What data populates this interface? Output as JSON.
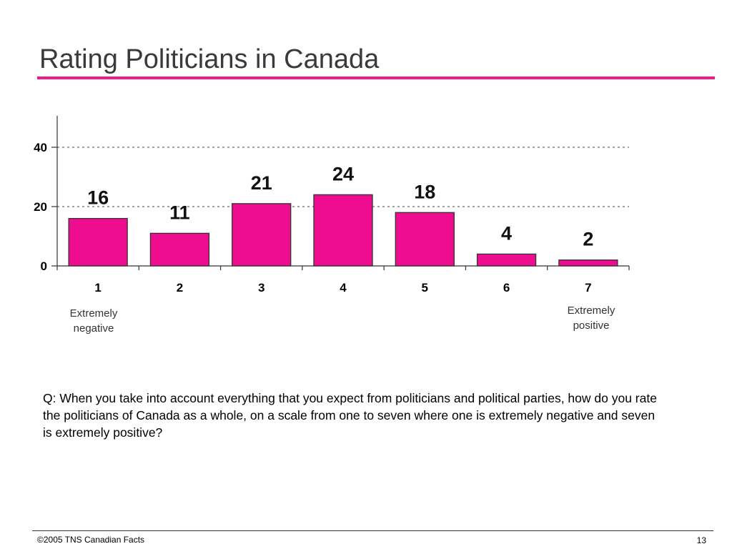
{
  "title": "Rating Politicians in Canada",
  "colors": {
    "accent": "#ee1a8c",
    "bar_fill": "#ee0d8e",
    "bar_stroke": "#333333"
  },
  "chart_data": {
    "type": "bar",
    "categories": [
      "1",
      "2",
      "3",
      "4",
      "5",
      "6",
      "7"
    ],
    "values": [
      16,
      11,
      21,
      24,
      18,
      4,
      2
    ],
    "data_labels": [
      "16",
      "11",
      "21",
      "24",
      "18",
      "4",
      "2"
    ],
    "ylim": [
      0,
      50
    ],
    "yticks": [
      0,
      20,
      40
    ],
    "gridlines": [
      20,
      40
    ],
    "grid": "dotted horizontal",
    "xlabel": "",
    "ylabel": "",
    "legend": "none"
  },
  "scale_labels": {
    "low": "Extremely negative",
    "high": "Extremely positive"
  },
  "question": "Q: When you take into account everything that you expect from politicians and political parties, how do you rate the politicians of Canada as a whole, on a scale from one to seven where one is extremely negative and seven is extremely positive?",
  "footer": {
    "copyright": "©2005 TNS Canadian Facts",
    "page_number": "13"
  }
}
